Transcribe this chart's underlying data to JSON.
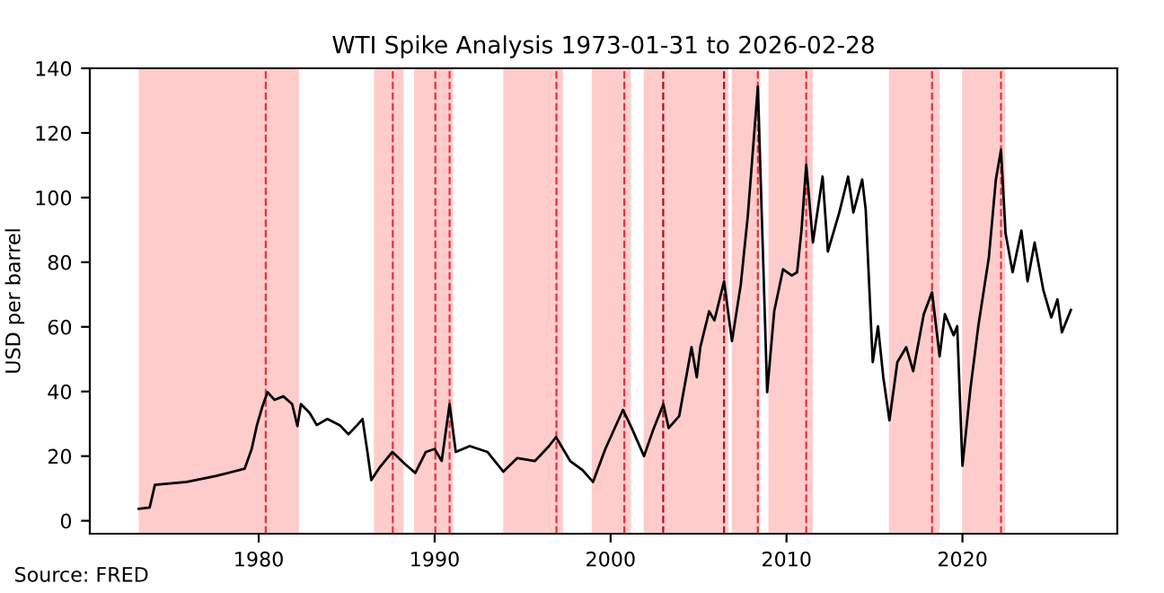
{
  "chart_data": {
    "type": "line",
    "title": "WTI Spike Analysis 1973-01-31 to 2026-02-28",
    "ylabel": "USD per barrel",
    "annotations": [
      "Source: FRED"
    ],
    "series": [
      {
        "color": "#000000",
        "x": [
          1973.18,
          1973.8,
          1974.1,
          1975.9,
          1977.6,
          1979.2,
          1979.6,
          1979.9,
          1980.2,
          1980.5,
          1980.9,
          1981.4,
          1981.9,
          1982.2,
          1982.4,
          1982.9,
          1983.3,
          1983.9,
          1984.6,
          1985.1,
          1985.6,
          1985.9,
          1986.2,
          1986.4,
          1986.9,
          1987.6,
          1988.3,
          1988.9,
          1989.5,
          1990.0,
          1990.4,
          1990.85,
          1991.2,
          1992.0,
          1993.0,
          1993.9,
          1994.7,
          1995.7,
          1996.5,
          1996.9,
          1997.7,
          1998.4,
          1999.0,
          1999.7,
          2000.7,
          2001.2,
          2001.9,
          2002.4,
          2003.0,
          2003.3,
          2003.9,
          2004.6,
          2004.9,
          2005.1,
          2005.6,
          2005.9,
          2006.45,
          2006.9,
          2007.4,
          2007.8,
          2008.37,
          2008.9,
          2009.3,
          2009.8,
          2010.3,
          2010.6,
          2010.85,
          2011.12,
          2011.5,
          2012.05,
          2012.35,
          2013.0,
          2013.5,
          2013.8,
          2014.3,
          2014.5,
          2014.9,
          2015.2,
          2015.5,
          2015.85,
          2016.3,
          2016.8,
          2017.2,
          2017.8,
          2018.27,
          2018.7,
          2019.0,
          2019.5,
          2019.7,
          2020.0,
          2020.45,
          2020.9,
          2021.5,
          2021.9,
          2022.19,
          2022.45,
          2022.85,
          2023.35,
          2023.7,
          2024.1,
          2024.6,
          2025.05,
          2025.4,
          2025.65,
          2026.16
        ],
        "values": [
          3.7,
          4.1,
          11.1,
          12,
          13.9,
          16.1,
          22.2,
          29.6,
          35.2,
          39.8,
          37.4,
          38.5,
          36.1,
          29.3,
          36.1,
          33.3,
          29.6,
          31.5,
          29.6,
          26.8,
          29.6,
          31.5,
          20.5,
          12.6,
          16.7,
          21.3,
          17.6,
          14.8,
          21.3,
          22.2,
          18.5,
          36.1,
          21.3,
          23.1,
          21.3,
          15.2,
          19.4,
          18.5,
          23.1,
          25.9,
          18.5,
          15.7,
          12,
          22.2,
          34.3,
          28.7,
          20,
          27.8,
          36.1,
          28.7,
          32.4,
          53.7,
          44.4,
          53.7,
          64.8,
          62,
          74.1,
          55.6,
          73.1,
          94.4,
          134.3,
          39.8,
          64.8,
          77.8,
          75.9,
          76.9,
          89.8,
          110.2,
          86.1,
          106.5,
          83.3,
          95.4,
          106.5,
          95.4,
          105.6,
          96.3,
          49.1,
          60.2,
          44.4,
          31.1,
          49.1,
          53.7,
          46.3,
          63.9,
          70.7,
          50.9,
          63.9,
          57.4,
          60.2,
          17,
          40.7,
          60.2,
          81.5,
          105.6,
          114.8,
          88.9,
          76.9,
          89.8,
          74.1,
          86.1,
          71.3,
          62.9,
          68.5,
          58.3,
          65.2
        ]
      }
    ],
    "xlim": [
      1970.4,
      2028.8
    ],
    "xticks": [
      1980,
      1990,
      2000,
      2010,
      2020
    ],
    "ylim": [
      -4,
      140
    ],
    "yticks": [
      0,
      20,
      40,
      60,
      80,
      100,
      120,
      140
    ],
    "grid": false,
    "legend": false,
    "bands": [
      {
        "axis": "x",
        "from": 1973.18,
        "to": 1982.29,
        "color": "#ffcccc"
      },
      {
        "axis": "x",
        "from": 1986.55,
        "to": 1988.23,
        "color": "#ffcccc"
      },
      {
        "axis": "x",
        "from": 1988.83,
        "to": 1991.05,
        "color": "#ffcccc"
      },
      {
        "axis": "x",
        "from": 1993.9,
        "to": 1997.29,
        "color": "#ffcccc"
      },
      {
        "axis": "x",
        "from": 1998.93,
        "to": 2001.15,
        "color": "#ffcccc"
      },
      {
        "axis": "x",
        "from": 2001.88,
        "to": 2006.69,
        "color": "#ffcccc"
      },
      {
        "axis": "x",
        "from": 2006.89,
        "to": 2008.5,
        "color": "#ffcccc"
      },
      {
        "axis": "x",
        "from": 2008.97,
        "to": 2011.49,
        "color": "#ffcccc"
      },
      {
        "axis": "x",
        "from": 2015.82,
        "to": 2018.7,
        "color": "#ffcccc"
      },
      {
        "axis": "x",
        "from": 2019.98,
        "to": 2022.43,
        "color": "#ffcccc"
      }
    ],
    "ref_lines": [
      {
        "axis": "x",
        "value": 1980.4,
        "color": "#e8303a",
        "line_style": "dashed"
      },
      {
        "axis": "x",
        "value": 1987.62,
        "color": "#e8303a",
        "line_style": "dashed"
      },
      {
        "axis": "x",
        "value": 1990.04,
        "color": "#e8303a",
        "line_style": "dashed"
      },
      {
        "axis": "x",
        "value": 1990.85,
        "color": "#e8303a",
        "line_style": "dashed"
      },
      {
        "axis": "x",
        "value": 1996.92,
        "color": "#e8303a",
        "line_style": "dashed"
      },
      {
        "axis": "x",
        "value": 2000.78,
        "color": "#e8303a",
        "line_style": "dashed"
      },
      {
        "axis": "x",
        "value": 2002.99,
        "color": "#b01020",
        "line_style": "dashed"
      },
      {
        "axis": "x",
        "value": 2006.45,
        "color": "#b01020",
        "line_style": "dashed"
      },
      {
        "axis": "x",
        "value": 2008.37,
        "color": "#e8303a",
        "line_style": "dashed"
      },
      {
        "axis": "x",
        "value": 2011.12,
        "color": "#e8303a",
        "line_style": "dashed"
      },
      {
        "axis": "x",
        "value": 2018.27,
        "color": "#e8303a",
        "line_style": "dashed"
      },
      {
        "axis": "x",
        "value": 2022.19,
        "color": "#e8303a",
        "line_style": "dashed"
      }
    ]
  }
}
